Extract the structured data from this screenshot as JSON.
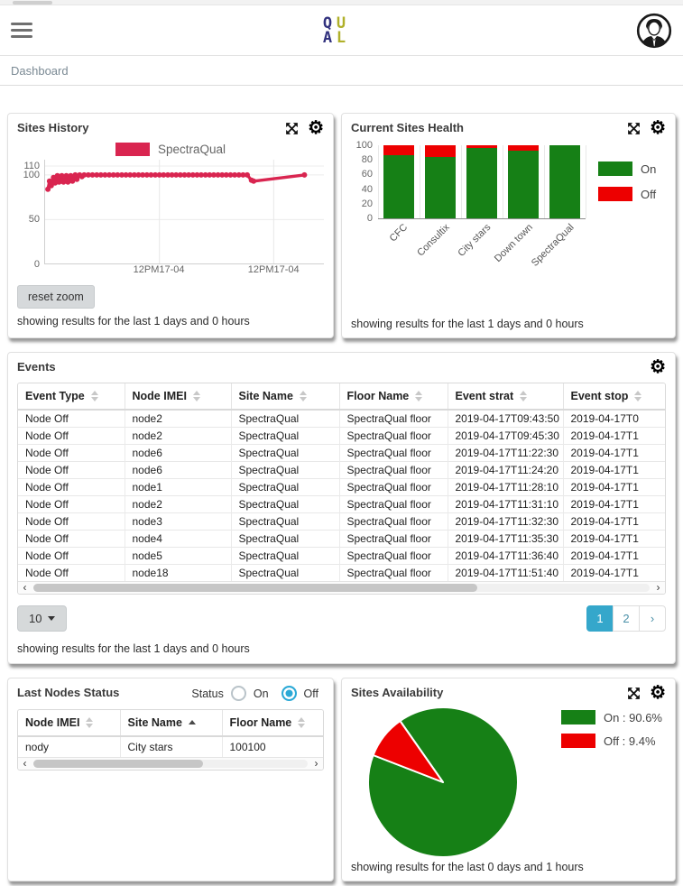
{
  "header": {
    "logo_letters": [
      {
        "ch": "Q",
        "color": "#32327e"
      },
      {
        "ch": "U",
        "color": "#b0b02a"
      },
      {
        "ch": "A",
        "color": "#32327e"
      },
      {
        "ch": "L",
        "color": "#b0b02a"
      }
    ]
  },
  "breadcrumb": "Dashboard",
  "sites_history": {
    "title": "Sites History",
    "reset_zoom_label": "reset zoom",
    "footer": "showing results for the last 1 days and 0 hours"
  },
  "current_sites_health": {
    "title": "Current Sites Health",
    "footer": "showing results for the last 1 days and 0 hours"
  },
  "events": {
    "title": "Events",
    "columns": [
      {
        "label": "Event Type",
        "sort": "both"
      },
      {
        "label": "Node IMEI",
        "sort": "both"
      },
      {
        "label": "Site Name",
        "sort": "both"
      },
      {
        "label": "Floor Name",
        "sort": "both"
      },
      {
        "label": "Event strat",
        "sort": "both"
      },
      {
        "label": "Event stop",
        "sort": "both"
      }
    ],
    "rows": [
      [
        "Node Off",
        "node2",
        "SpectraQual",
        "SpectraQual floor",
        "2019-04-17T09:43:50",
        "2019-04-17T0"
      ],
      [
        "Node Off",
        "node2",
        "SpectraQual",
        "SpectraQual floor",
        "2019-04-17T09:45:30",
        "2019-04-17T1"
      ],
      [
        "Node Off",
        "node6",
        "SpectraQual",
        "SpectraQual floor",
        "2019-04-17T11:22:30",
        "2019-04-17T1"
      ],
      [
        "Node Off",
        "node6",
        "SpectraQual",
        "SpectraQual floor",
        "2019-04-17T11:24:20",
        "2019-04-17T1"
      ],
      [
        "Node Off",
        "node1",
        "SpectraQual",
        "SpectraQual floor",
        "2019-04-17T11:28:10",
        "2019-04-17T1"
      ],
      [
        "Node Off",
        "node2",
        "SpectraQual",
        "SpectraQual floor",
        "2019-04-17T11:31:10",
        "2019-04-17T1"
      ],
      [
        "Node Off",
        "node3",
        "SpectraQual",
        "SpectraQual floor",
        "2019-04-17T11:32:30",
        "2019-04-17T1"
      ],
      [
        "Node Off",
        "node4",
        "SpectraQual",
        "SpectraQual floor",
        "2019-04-17T11:35:30",
        "2019-04-17T1"
      ],
      [
        "Node Off",
        "node5",
        "SpectraQual",
        "SpectraQual floor",
        "2019-04-17T11:36:40",
        "2019-04-17T1"
      ],
      [
        "Node Off",
        "node18",
        "SpectraQual",
        "SpectraQual floor",
        "2019-04-17T11:51:40",
        "2019-04-17T1"
      ]
    ],
    "pagination": {
      "page_size": "10",
      "pages": [
        "1",
        "2",
        "›"
      ],
      "active": "1"
    },
    "footer": "showing results for the last 1 days and 0 hours"
  },
  "last_nodes_status": {
    "title": "Last Nodes Status",
    "status_label": "Status",
    "radio_on": "On",
    "radio_off": "Off",
    "selected": "Off",
    "columns": [
      {
        "label": "Node IMEI",
        "sort": "both"
      },
      {
        "label": "Site Name",
        "sort": "asc"
      },
      {
        "label": "Floor Name",
        "sort": "both"
      }
    ],
    "rows": [
      [
        "nody",
        "City stars",
        "100100"
      ]
    ]
  },
  "sites_availability": {
    "title": "Sites Availability",
    "legend": [
      "On : 90.6%",
      "Off : 9.4%"
    ],
    "footer": "showing results for the last 0 days and 1 hours"
  },
  "chart_data": [
    {
      "type": "line",
      "title": "Sites History",
      "series_name": "SpectraQual",
      "color": "#d92550",
      "y_ticks": [
        110,
        100,
        50,
        0
      ],
      "ylim": [
        0,
        117
      ],
      "x_tick_labels": [
        "12PM17-04",
        "12PM17-04"
      ],
      "x_tick_pos_pct": [
        41,
        82
      ],
      "points": [
        [
          1,
          84
        ],
        [
          1.6,
          93
        ],
        [
          2.2,
          88
        ],
        [
          3,
          97
        ],
        [
          3.6,
          91
        ],
        [
          4.4,
          99
        ],
        [
          5,
          92
        ],
        [
          6,
          99
        ],
        [
          6.6,
          92
        ],
        [
          7.6,
          99
        ],
        [
          8.2,
          92
        ],
        [
          9.2,
          99
        ],
        [
          9.8,
          93
        ],
        [
          10.8,
          100
        ],
        [
          11.4,
          95
        ],
        [
          12.4,
          100
        ],
        [
          13.2,
          98
        ],
        [
          14,
          100
        ],
        [
          15.5,
          100
        ],
        [
          17,
          100
        ],
        [
          18.5,
          100
        ],
        [
          20,
          100
        ],
        [
          21.5,
          100
        ],
        [
          23,
          100
        ],
        [
          24.5,
          100
        ],
        [
          26,
          100
        ],
        [
          27.5,
          100
        ],
        [
          29,
          100
        ],
        [
          30.5,
          100
        ],
        [
          32,
          100
        ],
        [
          33.5,
          100
        ],
        [
          35,
          100
        ],
        [
          36.5,
          100
        ],
        [
          38,
          100
        ],
        [
          39.5,
          100
        ],
        [
          41,
          100
        ],
        [
          42.5,
          100
        ],
        [
          44,
          100
        ],
        [
          45.5,
          100
        ],
        [
          47,
          100
        ],
        [
          48.5,
          100
        ],
        [
          50,
          100
        ],
        [
          51.5,
          100
        ],
        [
          53,
          100
        ],
        [
          54.5,
          100
        ],
        [
          56,
          100
        ],
        [
          57.5,
          100
        ],
        [
          59,
          100
        ],
        [
          60.5,
          100
        ],
        [
          62,
          100
        ],
        [
          63.5,
          100
        ],
        [
          65,
          100
        ],
        [
          66.5,
          100
        ],
        [
          68,
          100
        ],
        [
          69.5,
          100
        ],
        [
          71,
          100
        ],
        [
          72.5,
          100
        ],
        [
          74,
          94
        ],
        [
          74.8,
          93
        ],
        [
          93,
          100
        ]
      ]
    },
    {
      "type": "bar",
      "stacked": true,
      "categories": [
        "CFC",
        "Consultix",
        "City stars",
        "Down town",
        "SpectraQual"
      ],
      "series": [
        {
          "name": "On",
          "color": "#168016",
          "values": [
            87,
            84,
            96,
            92,
            100
          ]
        },
        {
          "name": "Off",
          "color": "#ed0000",
          "values": [
            13,
            16,
            4,
            8,
            0
          ]
        }
      ],
      "y_ticks": [
        100,
        80,
        60,
        40,
        20,
        0
      ],
      "ylim": [
        0,
        100
      ]
    },
    {
      "type": "pie",
      "start_deg": 325,
      "slices": [
        {
          "label": "On",
          "pct": 90.6,
          "color": "#168016"
        },
        {
          "label": "Off",
          "pct": 9.4,
          "color": "#ed0000"
        }
      ]
    }
  ]
}
